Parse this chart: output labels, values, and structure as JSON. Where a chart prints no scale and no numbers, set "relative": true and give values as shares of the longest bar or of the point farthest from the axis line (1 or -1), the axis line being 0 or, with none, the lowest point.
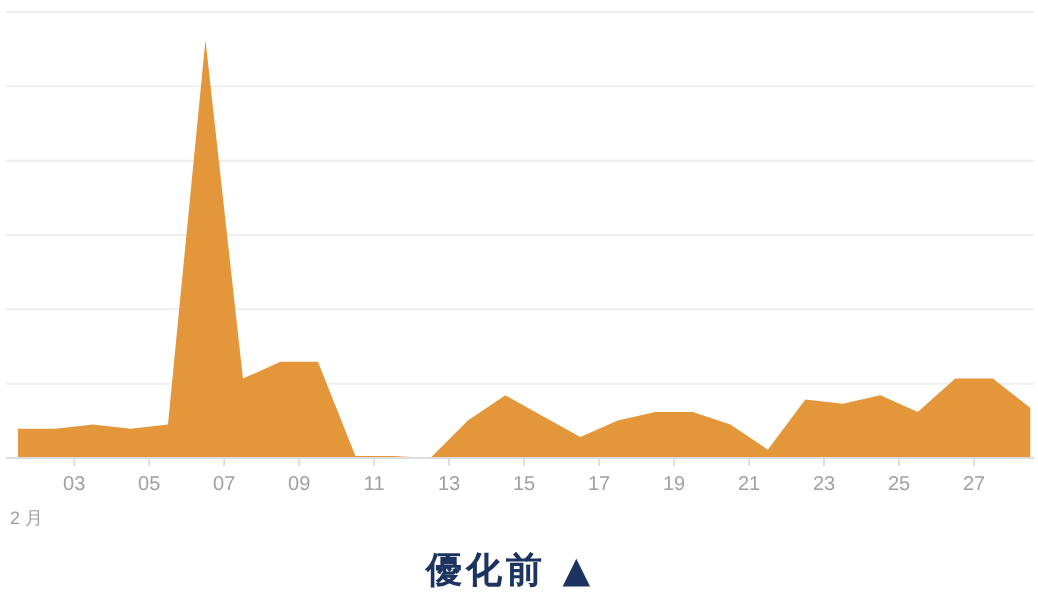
{
  "chart_data": {
    "type": "area",
    "relative": true,
    "title": "優化前 ▲",
    "xlabel": "2 月",
    "x": [
      1.5,
      2.5,
      3.5,
      4.5,
      5.5,
      6.5,
      7.5,
      8.5,
      9.5,
      10.5,
      11.5,
      12.5,
      13.5,
      14.5,
      15.5,
      16.5,
      17.5,
      18.5,
      19.5,
      20.5,
      21.5,
      22.5,
      23.5,
      24.5,
      25.5,
      26.5,
      27.5,
      28.5
    ],
    "xlim": [
      1.18,
      28.6
    ],
    "xticks": [
      {
        "value": 3,
        "label": "03"
      },
      {
        "value": 5,
        "label": "05"
      },
      {
        "value": 7,
        "label": "07"
      },
      {
        "value": 9,
        "label": "09"
      },
      {
        "value": 11,
        "label": "11"
      },
      {
        "value": 13,
        "label": "13"
      },
      {
        "value": 15,
        "label": "15"
      },
      {
        "value": 17,
        "label": "17"
      },
      {
        "value": 19,
        "label": "19"
      },
      {
        "value": 21,
        "label": "21"
      },
      {
        "value": 23,
        "label": "23"
      },
      {
        "value": 25,
        "label": "25"
      },
      {
        "value": 27,
        "label": "27"
      }
    ],
    "grid": "y",
    "series": [
      {
        "color": "#e3963a",
        "values": [
          0.07,
          0.07,
          0.08,
          0.07,
          0.08,
          1,
          0.19,
          0.23,
          0.23,
          0.005,
          0.005,
          0,
          0.09,
          0.15,
          0.1,
          0.05,
          0.09,
          0.11,
          0.11,
          0.08,
          0.02,
          0.14,
          0.13,
          0.15,
          0.11,
          0.19,
          0.19,
          0.12
        ]
      }
    ]
  }
}
